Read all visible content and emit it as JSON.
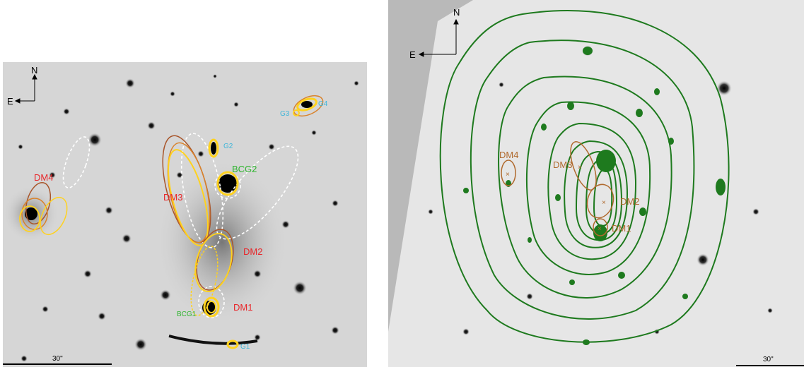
{
  "left_panel": {
    "compass": {
      "north": "N",
      "east": "E"
    },
    "scale_bar": "30\"",
    "labels": {
      "dm1": "DM1",
      "dm2": "DM2",
      "dm3": "DM3",
      "dm4": "DM4",
      "bcg1": "BCG1",
      "bcg2": "BCG2",
      "g1": "G1",
      "g2": "G2",
      "g3": "G3",
      "g4": "G4"
    },
    "colors": {
      "dm_label": "#e8262a",
      "bcg_label": "#2fb52f",
      "galaxy_label": "#3fb6d9",
      "ellipse_yellow": "#ffd21f",
      "ellipse_orange": "#d9822b",
      "ellipse_brown": "#a8552a",
      "ellipse_white": "#ffffff"
    }
  },
  "right_panel": {
    "compass": {
      "north": "N",
      "east": "E"
    },
    "scale_bar": "30\"",
    "labels": {
      "dm1": "DM1",
      "dm2": "DM2",
      "dm3": "DM3",
      "dm4": "DM4"
    },
    "colors": {
      "contour": "#1e7a1e",
      "dm_label": "#b06a2e",
      "background": "#b9b9b9",
      "field": "#e6e6e6"
    }
  }
}
